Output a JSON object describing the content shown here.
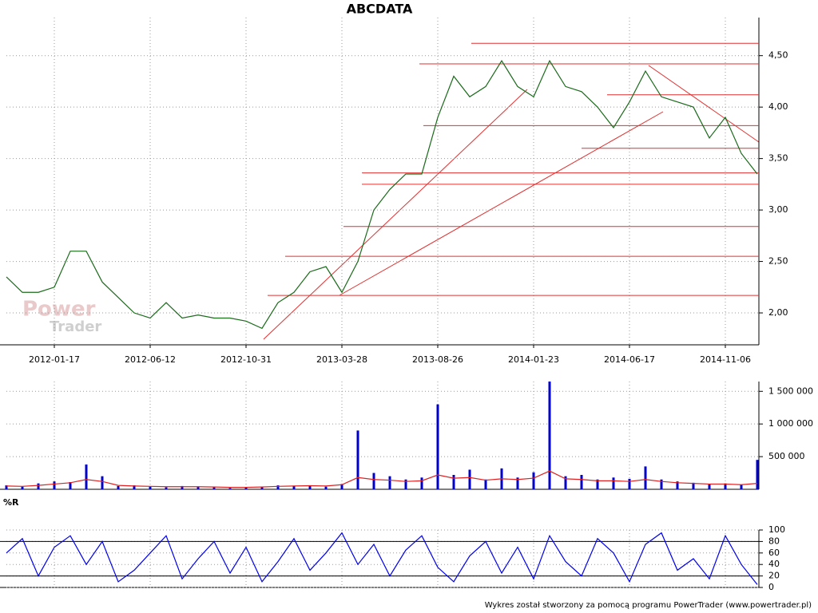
{
  "chart_data": [
    {
      "type": "line",
      "title": "ABCDATA",
      "watermark": [
        "Power",
        "Trader"
      ],
      "categories": [
        null,
        null,
        null,
        "2012-01-17",
        null,
        null,
        null,
        null,
        null,
        "2012-06-12",
        null,
        null,
        null,
        null,
        null,
        "2012-10-31",
        null,
        null,
        null,
        null,
        null,
        "2013-03-28",
        null,
        null,
        null,
        null,
        null,
        "2013-08-26",
        null,
        null,
        null,
        null,
        null,
        "2014-01-23",
        null,
        null,
        null,
        null,
        null,
        "2014-06-17",
        null,
        null,
        null,
        null,
        null,
        "2014-11-06",
        null,
        null
      ],
      "series": [
        {
          "name": "ABCDATA",
          "color": "#1a6b1a",
          "values": [
            2.35,
            2.2,
            2.2,
            2.25,
            2.6,
            2.6,
            2.3,
            2.15,
            2.0,
            1.95,
            2.1,
            1.95,
            1.98,
            1.95,
            1.95,
            1.92,
            1.85,
            2.1,
            2.2,
            2.4,
            2.45,
            2.2,
            2.5,
            3.0,
            3.2,
            3.35,
            3.35,
            3.9,
            4.3,
            4.1,
            4.2,
            4.45,
            4.2,
            4.1,
            4.45,
            4.2,
            4.15,
            4.0,
            3.8,
            4.05,
            4.35,
            4.1,
            4.05,
            4.0,
            3.7,
            3.9,
            3.55,
            3.35
          ]
        }
      ],
      "levels": [
        4.62,
        4.42,
        4.12,
        3.82,
        3.6,
        3.36,
        3.25,
        2.84,
        2.55,
        2.17
      ],
      "level_color": "#e03030",
      "ylim": [
        1.69,
        4.87
      ],
      "yticks": [
        {
          "value": 2.0,
          "label": "2,00"
        },
        {
          "value": 2.5,
          "label": "2,50"
        },
        {
          "value": 3.0,
          "label": "3,00"
        },
        {
          "value": 3.5,
          "label": "3,50"
        },
        {
          "value": 4.0,
          "label": "4,00"
        },
        {
          "value": 4.5,
          "label": "4,50"
        }
      ],
      "grid": true
    },
    {
      "type": "bar",
      "series": [
        {
          "name": "Volume",
          "color": "#0000cc",
          "values": [
            60000,
            40000,
            90000,
            120000,
            110000,
            380000,
            200000,
            50000,
            60000,
            40000,
            30000,
            50000,
            40000,
            30000,
            20000,
            30000,
            40000,
            60000,
            50000,
            60000,
            40000,
            80000,
            900000,
            250000,
            200000,
            150000,
            180000,
            1300000,
            220000,
            300000,
            150000,
            320000,
            180000,
            260000,
            1650000,
            200000,
            220000,
            150000,
            180000,
            160000,
            350000,
            150000,
            120000,
            100000,
            80000,
            90000,
            70000,
            450000
          ]
        },
        {
          "name": "Average",
          "color": "#e02020",
          "values": [
            50000,
            45000,
            60000,
            80000,
            100000,
            150000,
            120000,
            60000,
            50000,
            45000,
            40000,
            40000,
            40000,
            35000,
            30000,
            30000,
            35000,
            45000,
            50000,
            55000,
            50000,
            70000,
            180000,
            150000,
            140000,
            120000,
            130000,
            220000,
            170000,
            180000,
            140000,
            160000,
            150000,
            170000,
            280000,
            160000,
            150000,
            130000,
            130000,
            120000,
            150000,
            120000,
            100000,
            90000,
            80000,
            80000,
            70000,
            90000
          ]
        }
      ],
      "ylim": [
        0,
        1650000
      ],
      "yticks": [
        {
          "value": 500000,
          "label": "500 000"
        },
        {
          "value": 1000000,
          "label": "1 000 000"
        },
        {
          "value": 1500000,
          "label": "1 500 000"
        }
      ],
      "grid": true
    },
    {
      "type": "line",
      "title": "%R",
      "series": [
        {
          "name": "%R",
          "color": "#0000ee",
          "values": [
            60,
            85,
            20,
            70,
            90,
            40,
            80,
            10,
            30,
            60,
            90,
            15,
            50,
            80,
            25,
            70,
            10,
            45,
            85,
            30,
            60,
            95,
            40,
            75,
            20,
            65,
            90,
            35,
            10,
            55,
            80,
            25,
            70,
            15,
            90,
            45,
            20,
            85,
            60,
            10,
            75,
            95,
            30,
            50,
            15,
            90,
            40,
            5
          ]
        }
      ],
      "hlines": [
        20,
        80
      ],
      "ylim": [
        0,
        100
      ],
      "yticks": [
        0,
        20,
        40,
        60,
        80,
        100
      ],
      "grid": true
    }
  ],
  "footer": "Wykres został stworzony za pomocą programu PowerTrader (www.powertrader.pl)"
}
